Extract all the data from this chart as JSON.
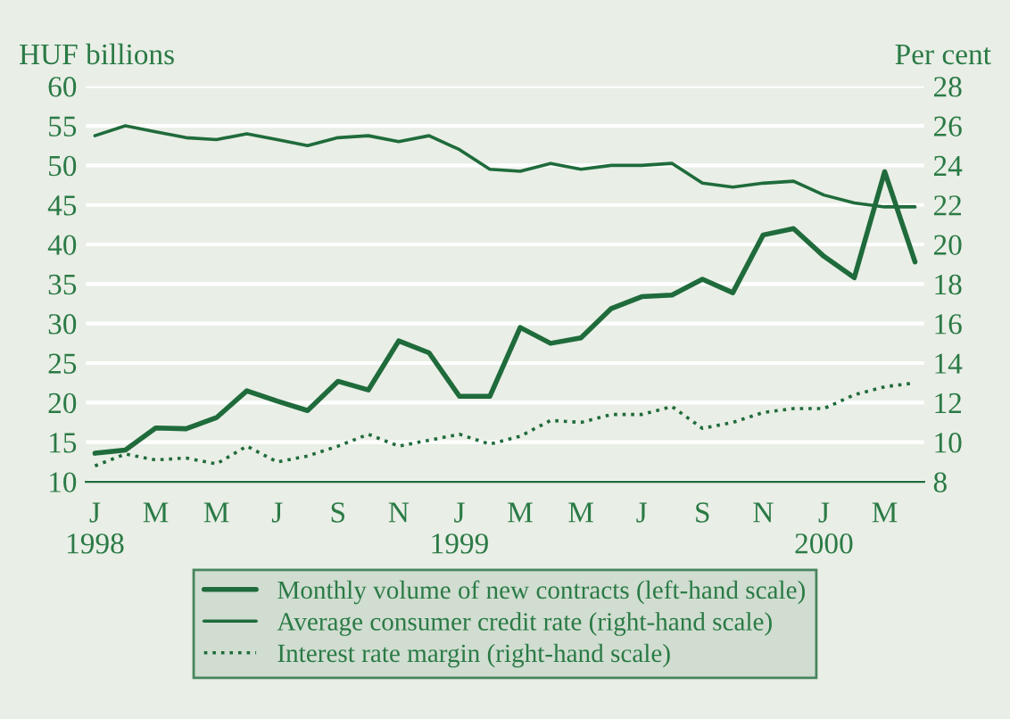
{
  "chart_data": {
    "type": "line",
    "ylabel": "HUF billions",
    "y2label": "Per cent",
    "categories": [
      "J\n1998",
      null,
      "M",
      null,
      "M",
      null,
      "J",
      null,
      "S",
      null,
      "N",
      null,
      "J\n1999",
      null,
      "M",
      null,
      "M",
      null,
      "J",
      null,
      "S",
      null,
      "N",
      null,
      "J\n2000",
      null,
      "M",
      null
    ],
    "series": [
      {
        "name": "Monthly volume of new contracts (left-hand scale)",
        "color": "#1f6b3b",
        "line_style": "solid",
        "values": [
          13.6,
          14.0,
          16.8,
          16.7,
          18.1,
          21.5,
          20.2,
          19.0,
          22.7,
          21.6,
          27.8,
          26.3,
          20.8,
          20.8,
          29.5,
          27.5,
          28.2,
          31.9,
          33.4,
          33.6,
          35.6,
          33.9,
          41.2,
          42.0,
          38.5,
          35.8,
          49.2,
          37.8
        ]
      },
      {
        "name": "Average consumer credit rate (right-hand scale)",
        "color": "#1f6b3b",
        "line_style": "solid",
        "axis": "y2",
        "values": [
          25.5,
          26.0,
          25.7,
          25.4,
          25.3,
          25.6,
          25.3,
          25.0,
          25.4,
          25.5,
          25.2,
          25.5,
          24.8,
          23.8,
          23.7,
          24.1,
          23.8,
          24.0,
          24.0,
          24.1,
          23.1,
          22.9,
          23.1,
          23.2,
          22.5,
          22.1,
          21.9,
          21.9
        ]
      },
      {
        "name": "Interest rate margin (right-hand scale)",
        "color": "#1f6b3b",
        "line_style": "dotted",
        "axis": "y2",
        "values": [
          8.8,
          9.4,
          9.1,
          9.2,
          8.9,
          9.8,
          9.0,
          9.3,
          9.8,
          10.4,
          9.8,
          10.1,
          10.4,
          9.9,
          10.3,
          11.1,
          11.0,
          11.4,
          11.4,
          11.8,
          10.7,
          11.0,
          11.5,
          11.7,
          11.7,
          12.4,
          12.8,
          13.0
        ]
      }
    ],
    "ylim": [
      10,
      60
    ],
    "yticks": [
      10,
      15,
      20,
      25,
      30,
      35,
      40,
      45,
      50,
      55,
      60
    ],
    "y2lim": [
      8,
      28
    ],
    "y2ticks": [
      8,
      10,
      12,
      14,
      16,
      18,
      20,
      22,
      24,
      26,
      28
    ],
    "grid": "y",
    "legend": "bottom",
    "marker": "none"
  }
}
